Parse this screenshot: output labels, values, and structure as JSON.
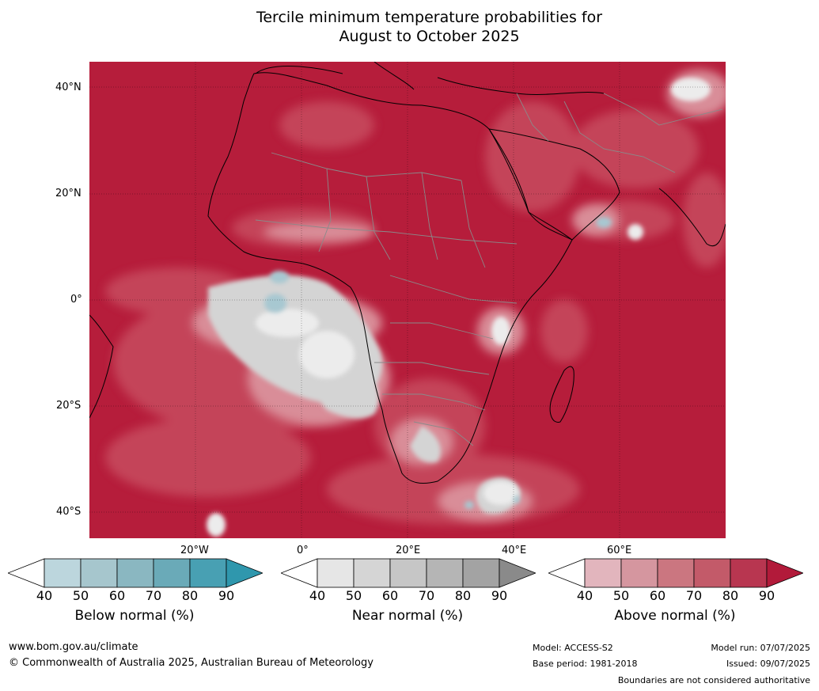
{
  "title": {
    "line1": "Tercile minimum temperature probabilities for",
    "line2": "August to October 2025"
  },
  "map": {
    "lat_labels": [
      "40°N",
      "20°N",
      "0°",
      "20°S",
      "40°S"
    ],
    "lon_labels": [
      "20°W",
      "0°",
      "20°E",
      "40°E",
      "60°E"
    ],
    "colors": {
      "ocean_land_fill": "#b61d3b",
      "above_60": "#c74c5f",
      "above_50": "#d98d98",
      "above_40": "#e9b8bf",
      "near_normal": "#d4d4d4",
      "near_light": "#ececec",
      "below_normal": "#a7c8d1",
      "border": "#000000",
      "country_border": "#8a8a8a"
    }
  },
  "colorbars": [
    {
      "name": "below",
      "label": "Below normal (%)",
      "ticks": [
        "40",
        "50",
        "60",
        "70",
        "80",
        "90"
      ],
      "colors": [
        "#ffffff",
        "#bcd6dd",
        "#a6c6cd",
        "#8ab7c1",
        "#6aaab8",
        "#48a0b3",
        "#2f97ad"
      ]
    },
    {
      "name": "near",
      "label": "Near normal (%)",
      "ticks": [
        "40",
        "50",
        "60",
        "70",
        "80",
        "90"
      ],
      "colors": [
        "#ffffff",
        "#e6e6e6",
        "#d5d5d5",
        "#c6c6c6",
        "#b5b5b5",
        "#a3a3a3",
        "#8a8a8a"
      ]
    },
    {
      "name": "above",
      "label": "Above normal (%)",
      "ticks": [
        "40",
        "50",
        "60",
        "70",
        "80",
        "90"
      ],
      "colors": [
        "#ffffff",
        "#e2b5bd",
        "#d5969f",
        "#cb7680",
        "#c35a69",
        "#b83650",
        "#b21a3a"
      ]
    }
  ],
  "footer": {
    "website": "www.bom.gov.au/climate",
    "copyright": "© Commonwealth of Australia 2025, Australian Bureau of Meteorology",
    "model": "Model: ACCESS-S2",
    "base_period": "Base period: 1981-2018",
    "model_run": "Model run: 07/07/2025",
    "issued": "Issued: 09/07/2025",
    "disclaimer": "Boundaries are not considered authoritative"
  }
}
